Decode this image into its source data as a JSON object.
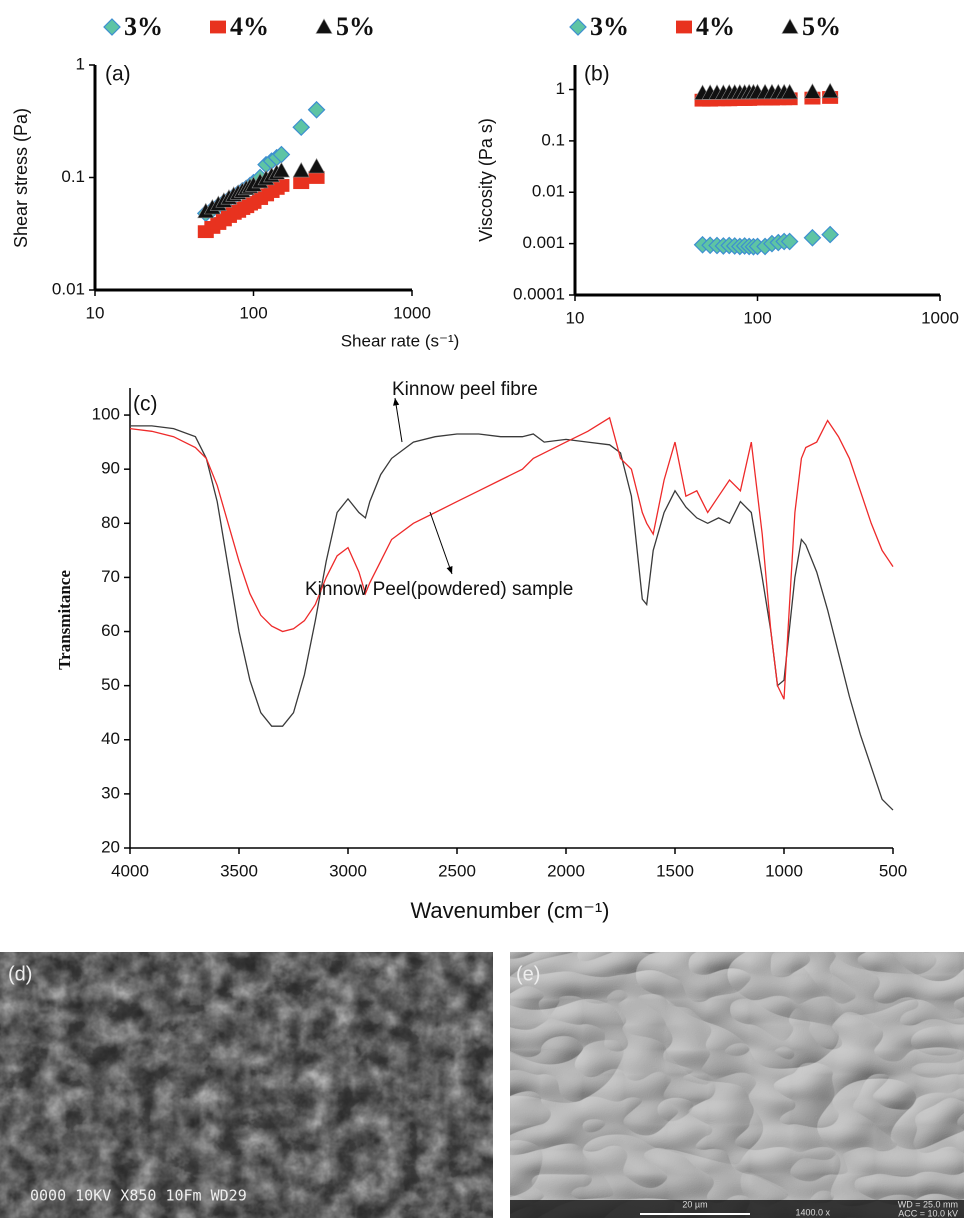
{
  "chart_data": [
    {
      "type": "scatter",
      "panel_label": "(a)",
      "y_label": "Shear stress (Pa)",
      "xscale": "log",
      "yscale": "log",
      "xlim": [
        10,
        1000
      ],
      "ylim": [
        0.01,
        1
      ],
      "xticks": [
        10,
        100,
        1000
      ],
      "yticks": [
        0.01,
        0.1,
        1
      ],
      "x": [
        50,
        55,
        60,
        65,
        70,
        75,
        80,
        85,
        90,
        95,
        100,
        110,
        120,
        130,
        140,
        150,
        200,
        250
      ],
      "series": [
        {
          "name": "3%",
          "color": "#5ec4a4",
          "marker": "diamond",
          "values": [
            0.048,
            0.052,
            0.056,
            0.06,
            0.064,
            0.068,
            0.072,
            0.076,
            0.08,
            0.085,
            0.09,
            0.1,
            0.13,
            0.14,
            0.15,
            0.16,
            0.28,
            0.4
          ]
        },
        {
          "name": "4%",
          "color": "#e8321f",
          "marker": "square",
          "values": [
            0.033,
            0.036,
            0.039,
            0.042,
            0.045,
            0.048,
            0.05,
            0.053,
            0.055,
            0.058,
            0.06,
            0.065,
            0.07,
            0.075,
            0.08,
            0.085,
            0.09,
            0.1
          ]
        },
        {
          "name": "5%",
          "color": "#111111",
          "marker": "triangle",
          "values": [
            0.05,
            0.054,
            0.058,
            0.062,
            0.066,
            0.07,
            0.073,
            0.076,
            0.08,
            0.083,
            0.086,
            0.092,
            0.098,
            0.104,
            0.11,
            0.115,
            0.115,
            0.125
          ]
        }
      ]
    },
    {
      "type": "scatter",
      "panel_label": "(b)",
      "y_label": "Viscosity (Pa s)",
      "x_label": "Shear rate (s⁻¹)",
      "xscale": "log",
      "yscale": "log",
      "xlim": [
        10,
        1000
      ],
      "ylim": [
        0.0001,
        3
      ],
      "xticks": [
        10,
        100,
        1000
      ],
      "yticks": [
        0.0001,
        0.001,
        0.01,
        0.1,
        1
      ],
      "x": [
        50,
        55,
        60,
        65,
        70,
        75,
        80,
        85,
        90,
        95,
        100,
        110,
        120,
        130,
        140,
        150,
        200,
        250
      ],
      "series": [
        {
          "name": "3%",
          "color": "#5ec4a4",
          "marker": "diamond",
          "values": [
            0.00095,
            0.00093,
            0.00092,
            0.0009,
            0.00092,
            0.0009,
            0.00088,
            0.0009,
            0.00088,
            0.00087,
            0.00088,
            0.00088,
            0.001,
            0.00105,
            0.0011,
            0.0011,
            0.0013,
            0.0015
          ]
        },
        {
          "name": "4%",
          "color": "#e8321f",
          "marker": "square",
          "values": [
            0.62,
            0.62,
            0.63,
            0.63,
            0.63,
            0.64,
            0.64,
            0.64,
            0.64,
            0.65,
            0.65,
            0.65,
            0.65,
            0.66,
            0.66,
            0.66,
            0.68,
            0.7
          ]
        },
        {
          "name": "5%",
          "color": "#111111",
          "marker": "triangle",
          "values": [
            0.85,
            0.86,
            0.86,
            0.86,
            0.87,
            0.87,
            0.87,
            0.87,
            0.88,
            0.88,
            0.88,
            0.88,
            0.88,
            0.88,
            0.88,
            0.88,
            0.9,
            0.92
          ]
        }
      ]
    },
    {
      "type": "line",
      "panel_label": "(c)",
      "y_label": "Transmitance",
      "x_label": "Wavenumber (cm⁻¹)",
      "xlim": [
        4000,
        500
      ],
      "ylim": [
        20,
        105
      ],
      "xticks": [
        4000,
        3500,
        3000,
        2500,
        2000,
        1500,
        1000,
        500
      ],
      "yticks": [
        20,
        30,
        40,
        50,
        60,
        70,
        80,
        90,
        100
      ],
      "annotations": [
        "Kinnow peel fibre",
        "Kinnow Peel(powdered) sample"
      ],
      "x": [
        4000,
        3900,
        3800,
        3700,
        3650,
        3600,
        3550,
        3500,
        3450,
        3400,
        3350,
        3300,
        3250,
        3200,
        3150,
        3100,
        3050,
        3000,
        2950,
        2920,
        2900,
        2850,
        2800,
        2700,
        2600,
        2500,
        2400,
        2300,
        2200,
        2150,
        2100,
        2000,
        1900,
        1800,
        1750,
        1700,
        1650,
        1630,
        1600,
        1550,
        1500,
        1450,
        1400,
        1350,
        1300,
        1250,
        1200,
        1150,
        1100,
        1060,
        1030,
        1000,
        950,
        920,
        900,
        850,
        800,
        750,
        700,
        650,
        600,
        550,
        500
      ],
      "series": [
        {
          "color": "#3a3a3a",
          "values": [
            98,
            98,
            97.5,
            96,
            92,
            84,
            72,
            60,
            51,
            45,
            42.5,
            42.5,
            45,
            52,
            62,
            73,
            82,
            84.5,
            82,
            81,
            84,
            89,
            92,
            95,
            96,
            96.5,
            96.5,
            96,
            96,
            96.5,
            95,
            95.5,
            95,
            94.5,
            93,
            85,
            66,
            65,
            75,
            82,
            86,
            83,
            81,
            80,
            81,
            80,
            84,
            82,
            70,
            60,
            50,
            51,
            70,
            77,
            76,
            71,
            64,
            56,
            48,
            41,
            35,
            29,
            27
          ]
        },
        {
          "color": "#ee2a2a",
          "values": [
            97.5,
            97,
            96,
            94,
            92,
            87,
            80,
            73,
            67,
            63,
            61,
            60,
            60.5,
            62,
            65,
            70,
            74,
            75.5,
            71,
            67,
            69,
            73,
            77,
            80,
            82,
            84,
            86,
            88,
            90,
            92,
            93,
            95,
            97,
            99.5,
            92,
            90,
            82,
            80,
            78,
            88,
            95,
            85,
            86,
            82,
            85,
            88,
            86,
            95,
            78,
            60,
            50,
            47.5,
            82,
            92,
            94,
            95,
            99,
            96,
            92,
            86,
            80,
            75,
            72
          ]
        }
      ]
    }
  ],
  "images": [
    {
      "label": "(d)",
      "info": "0000  10KV   X850  10Fm  WD29"
    },
    {
      "label": "(e)",
      "scale": "20 µm",
      "mag": "1400.0 x",
      "wd": "WD = 25.0 mm",
      "acc": "ACC = 10.0 kV"
    }
  ]
}
